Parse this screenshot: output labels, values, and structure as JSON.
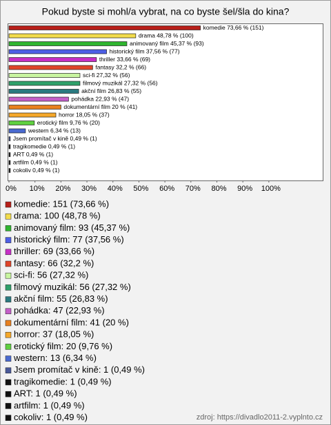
{
  "chart_data": {
    "type": "bar",
    "orientation": "horizontal",
    "title": "Pokud byste si mohl/a vybrat, na co byste šel/šla do kina?",
    "categories": [
      "komedie",
      "drama",
      "animovaný film",
      "historický film",
      "thriller",
      "fantasy",
      "sci-fi",
      "filmový muzikál",
      "akční film",
      "pohádka",
      "dokumentární film",
      "horror",
      "erotický film",
      "western",
      "Jsem promítač v kině",
      "tragikomedie",
      "ART",
      "artfilm",
      "cokoliv"
    ],
    "values": [
      73.66,
      48.78,
      45.37,
      37.56,
      33.66,
      32.2,
      27.32,
      27.32,
      26.83,
      22.93,
      20,
      18.05,
      9.76,
      6.34,
      0.49,
      0.49,
      0.49,
      0.49,
      0.49
    ],
    "value_labels": [
      "komedie 73,66 % (151)",
      "drama 48,78 % (100)",
      "animovaný film 45,37 % (93)",
      "historický film 37,56 % (77)",
      "thriller 33,66 % (69)",
      "fantasy 32,2 % (66)",
      "sci-fi 27,32 % (56)",
      "filmový muzikál 27,32 % (56)",
      "akční film 26,83 % (55)",
      "pohádka 22,93 % (47)",
      "dokumentární film 20 % (41)",
      "horror 18,05 % (37)",
      "erotický film 9,76 % (20)",
      "western 6,34 % (13)",
      "Jsem promítač v kině 0,49 % (1)",
      "tragikomedie 0,49 % (1)",
      "ART 0,49 % (1)",
      "artfilm 0,49 % (1)",
      "cokoliv 0,49 % (1)"
    ],
    "colors": [
      "#b8201a",
      "#f2dc4c",
      "#2fb52f",
      "#4d5fe6",
      "#c62fc6",
      "#e0452a",
      "#c8f5a0",
      "#2fa06a",
      "#2a7a80",
      "#c45fc8",
      "#e8801f",
      "#f5a82a",
      "#5fd040",
      "#4a6ad0",
      "#4a5a9a",
      "#111111",
      "#111111",
      "#111111",
      "#111111"
    ],
    "legend": [
      "komedie: 151 (73,66 %)",
      "drama: 100 (48,78 %)",
      "animovaný film: 93 (45,37 %)",
      "historický film: 77 (37,56 %)",
      "thriller: 69 (33,66 %)",
      "fantasy: 66 (32,2 %)",
      "sci-fi: 56 (27,32 %)",
      "filmový muzikál: 56 (27,32 %)",
      "akční film: 55 (26,83 %)",
      "pohádka: 47 (22,93 %)",
      "dokumentární film: 41 (20 %)",
      "horror: 37 (18,05 %)",
      "erotický film: 20 (9,76 %)",
      "western: 13 (6,34 %)",
      "Jsem promítač v kině: 1 (0,49 %)",
      "tragikomedie: 1 (0,49 %)",
      "ART: 1 (0,49 %)",
      "artfilm: 1 (0,49 %)",
      "cokoliv: 1 (0,49 %)"
    ],
    "xlim": [
      0,
      121
    ],
    "xticks": [
      {
        "value": 0,
        "label": "0%"
      },
      {
        "value": 10,
        "label": "10%"
      },
      {
        "value": 20,
        "label": "20%"
      },
      {
        "value": 30,
        "label": "30%"
      },
      {
        "value": 40,
        "label": "40%"
      },
      {
        "value": 50,
        "label": "50%"
      },
      {
        "value": 60,
        "label": "60%"
      },
      {
        "value": 70,
        "label": "70%"
      },
      {
        "value": 80,
        "label": "80%"
      },
      {
        "value": 90,
        "label": "90%"
      },
      {
        "value": 100,
        "label": "100%"
      }
    ],
    "source": "zdroj: https://divadlo2011-2.vyplnto.cz"
  }
}
